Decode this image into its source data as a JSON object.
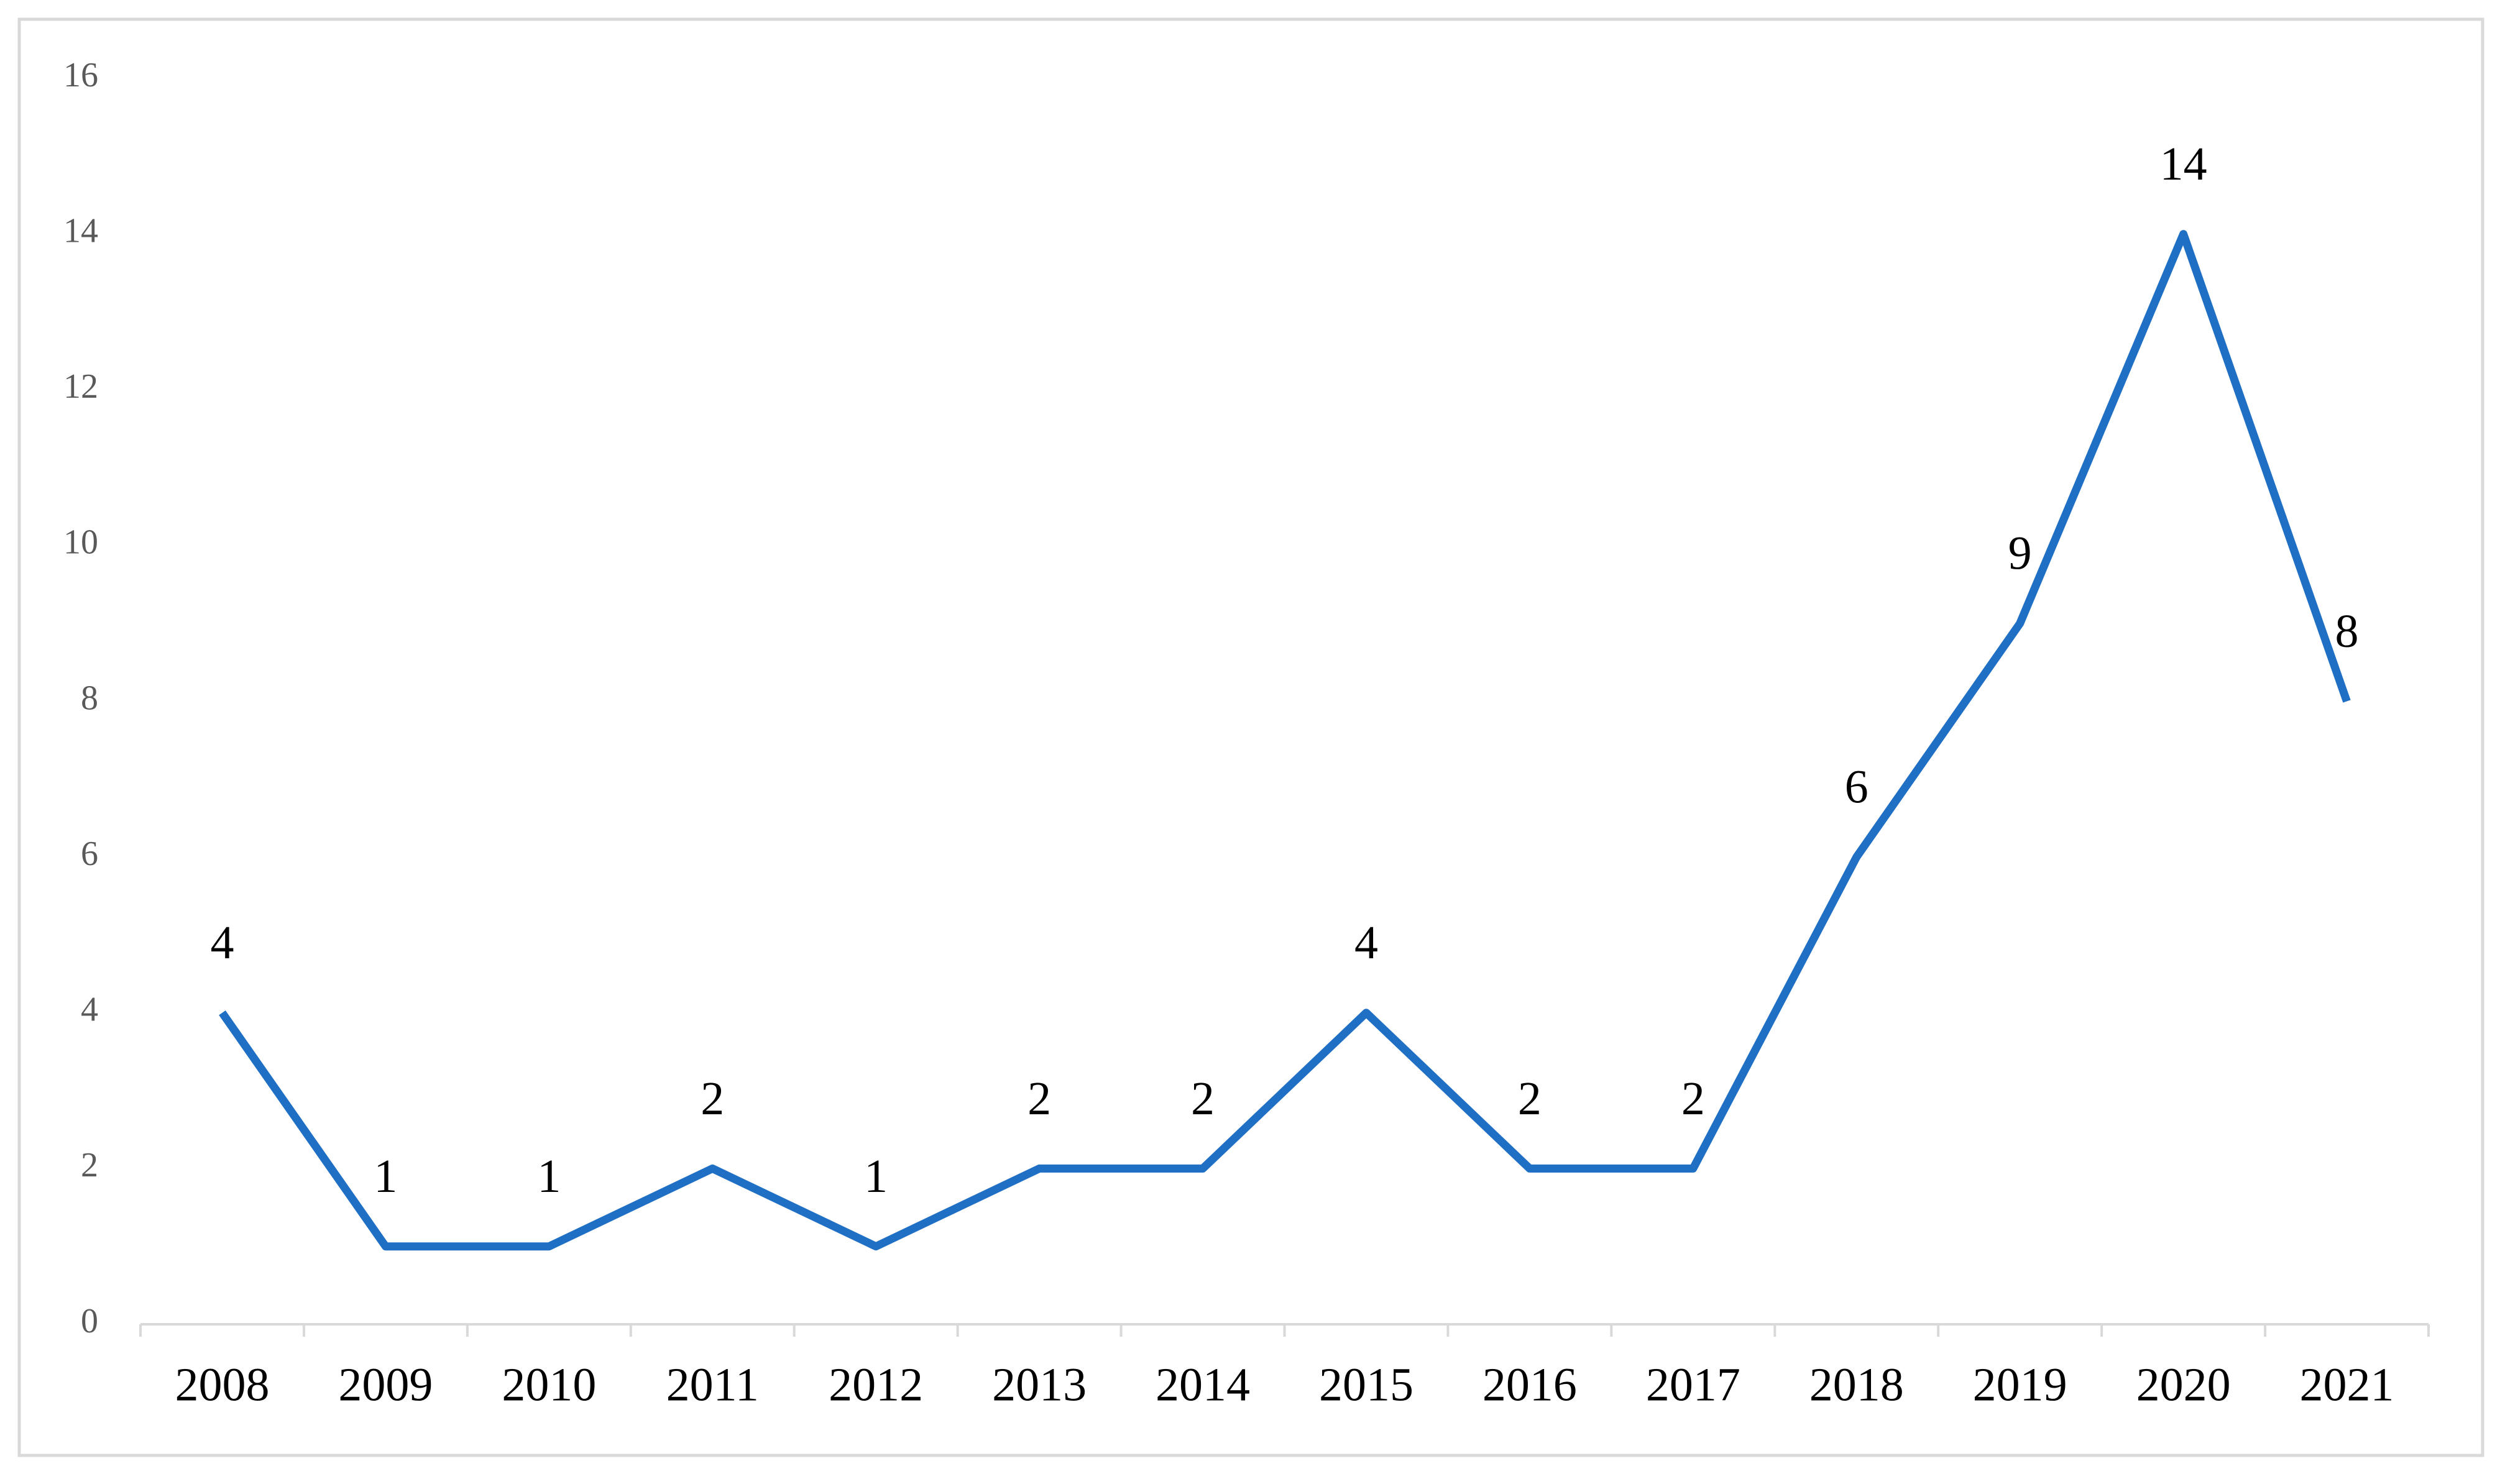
{
  "chart_data": {
    "type": "line",
    "categories": [
      "2008",
      "2009",
      "2010",
      "2011",
      "2012",
      "2013",
      "2014",
      "2015",
      "2016",
      "2017",
      "2018",
      "2019",
      "2020",
      "2021"
    ],
    "values": [
      4,
      1,
      1,
      2,
      1,
      2,
      2,
      4,
      2,
      2,
      6,
      9,
      14,
      8
    ],
    "color": "#1f6fc5",
    "ylim": [
      0,
      16
    ],
    "yticks": [
      0,
      2,
      4,
      6,
      8,
      10,
      12,
      14,
      16
    ],
    "grid": false
  }
}
